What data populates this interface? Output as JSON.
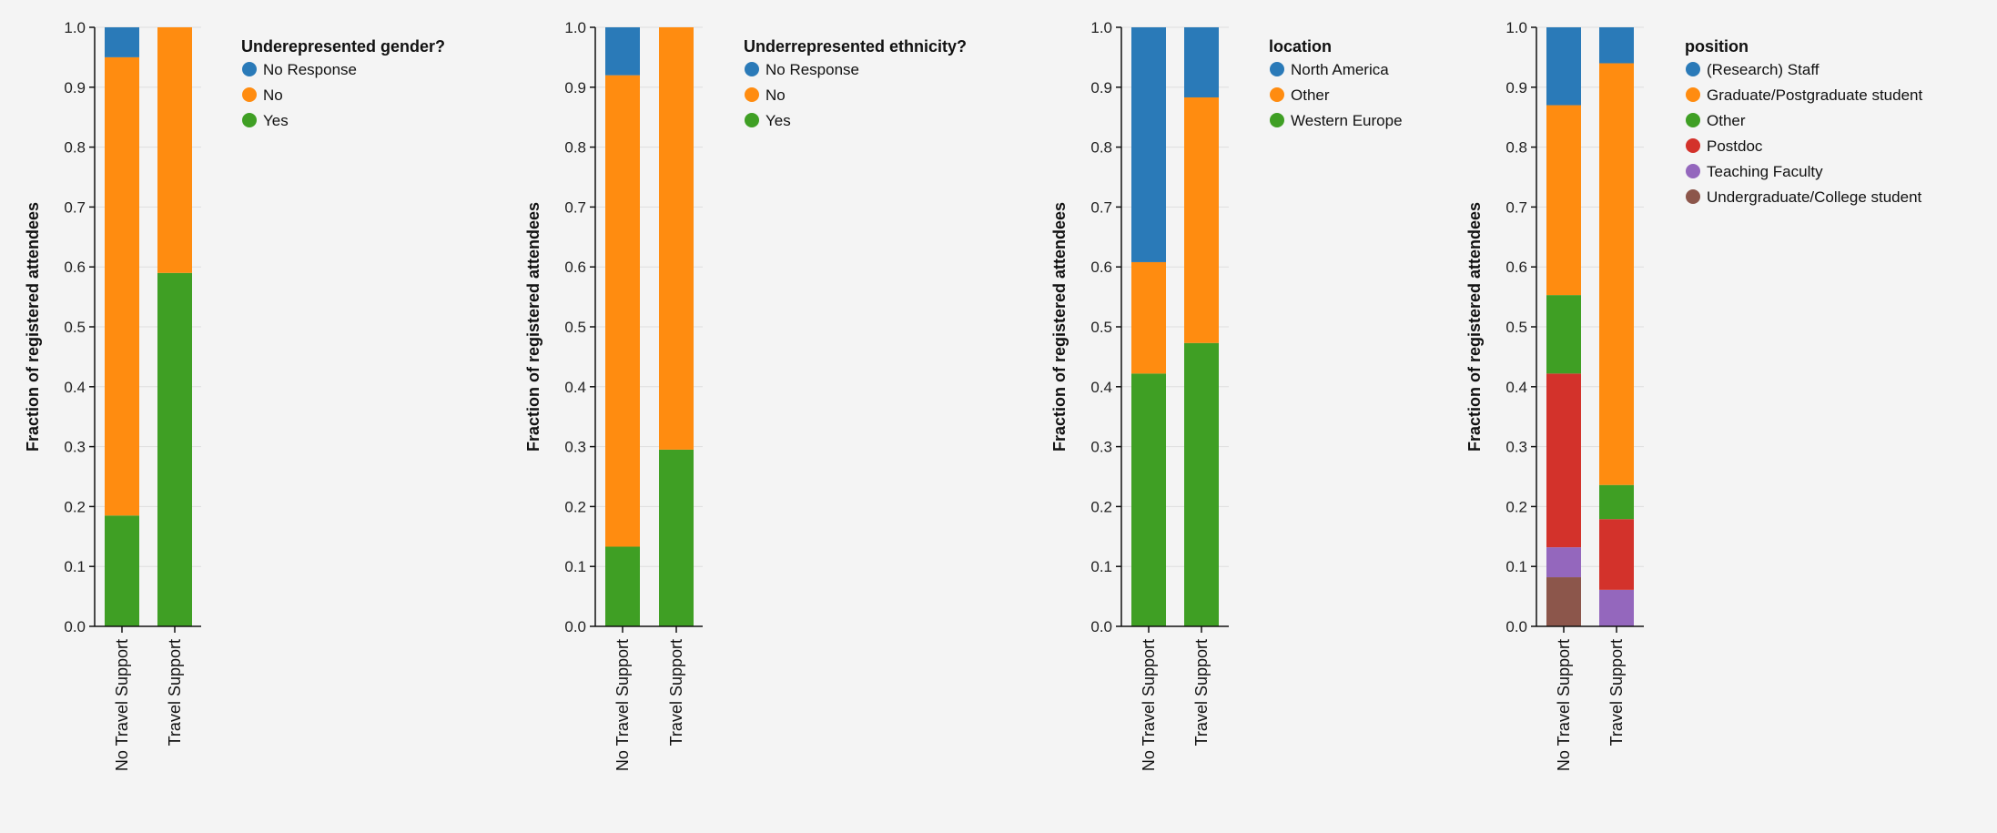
{
  "colors": {
    "blue": "#2a7ab8",
    "orange": "#ff8c10",
    "green": "#3f9f24",
    "red": "#d3322b",
    "purple": "#9467bd",
    "brown": "#8c564b",
    "grid": "#dedede",
    "axis": "#111111"
  },
  "chart_data": [
    {
      "type": "bar",
      "stacked": true,
      "title": "",
      "xlabel": "",
      "ylabel": "Fraction of registered attendees",
      "ylim": [
        0,
        1
      ],
      "yticks": [
        "0.0",
        "0.1",
        "0.2",
        "0.3",
        "0.4",
        "0.5",
        "0.6",
        "0.7",
        "0.8",
        "0.9",
        "1.0"
      ],
      "categories": [
        "No Travel Support",
        "Travel Support"
      ],
      "legend_title": "Underepresented gender?",
      "legend_position": "right",
      "series": [
        {
          "name": "No Response",
          "color": "#2a7ab8",
          "values": [
            0.05,
            0.0
          ]
        },
        {
          "name": "No",
          "color": "#ff8c10",
          "values": [
            0.765,
            0.41
          ]
        },
        {
          "name": "Yes",
          "color": "#3f9f24",
          "values": [
            0.185,
            0.59
          ]
        }
      ]
    },
    {
      "type": "bar",
      "stacked": true,
      "title": "",
      "xlabel": "",
      "ylabel": "Fraction of registered attendees",
      "ylim": [
        0,
        1
      ],
      "yticks": [
        "0.0",
        "0.1",
        "0.2",
        "0.3",
        "0.4",
        "0.5",
        "0.6",
        "0.7",
        "0.8",
        "0.9",
        "1.0"
      ],
      "categories": [
        "No Travel Support",
        "Travel Support"
      ],
      "legend_title": "Underrepresented ethnicity?",
      "legend_position": "right",
      "series": [
        {
          "name": "No Response",
          "color": "#2a7ab8",
          "values": [
            0.08,
            0.0
          ]
        },
        {
          "name": "No",
          "color": "#ff8c10",
          "values": [
            0.787,
            0.705
          ]
        },
        {
          "name": "Yes",
          "color": "#3f9f24",
          "values": [
            0.133,
            0.295
          ]
        }
      ]
    },
    {
      "type": "bar",
      "stacked": true,
      "title": "",
      "xlabel": "",
      "ylabel": "Fraction of registered attendees",
      "ylim": [
        0,
        1
      ],
      "yticks": [
        "0.0",
        "0.1",
        "0.2",
        "0.3",
        "0.4",
        "0.5",
        "0.6",
        "0.7",
        "0.8",
        "0.9",
        "1.0"
      ],
      "categories": [
        "No Travel Support",
        "Travel Support"
      ],
      "legend_title": "location",
      "legend_position": "right",
      "series": [
        {
          "name": "North America",
          "color": "#2a7ab8",
          "values": [
            0.392,
            0.117
          ]
        },
        {
          "name": "Other",
          "color": "#ff8c10",
          "values": [
            0.186,
            0.41
          ]
        },
        {
          "name": "Western Europe",
          "color": "#3f9f24",
          "values": [
            0.422,
            0.473
          ]
        }
      ]
    },
    {
      "type": "bar",
      "stacked": true,
      "title": "",
      "xlabel": "",
      "ylabel": "Fraction of registered attendees",
      "ylim": [
        0,
        1
      ],
      "yticks": [
        "0.0",
        "0.1",
        "0.2",
        "0.3",
        "0.4",
        "0.5",
        "0.6",
        "0.7",
        "0.8",
        "0.9",
        "1.0"
      ],
      "categories": [
        "No Travel Support",
        "Travel Support"
      ],
      "legend_title": "position",
      "legend_position": "right",
      "series": [
        {
          "name": "(Research) Staff",
          "color": "#2a7ab8",
          "values": [
            0.13,
            0.06
          ]
        },
        {
          "name": "Graduate/Postgraduate student",
          "color": "#ff8c10",
          "values": [
            0.317,
            0.704
          ]
        },
        {
          "name": "Other",
          "color": "#3f9f24",
          "values": [
            0.131,
            0.057
          ]
        },
        {
          "name": "Postdoc",
          "color": "#d3322b",
          "values": [
            0.29,
            0.118
          ]
        },
        {
          "name": "Teaching Faculty",
          "color": "#9467bd",
          "values": [
            0.05,
            0.061
          ]
        },
        {
          "name": "Undergraduate/College student",
          "color": "#8c564b",
          "values": [
            0.082,
            0.0
          ]
        }
      ]
    }
  ]
}
